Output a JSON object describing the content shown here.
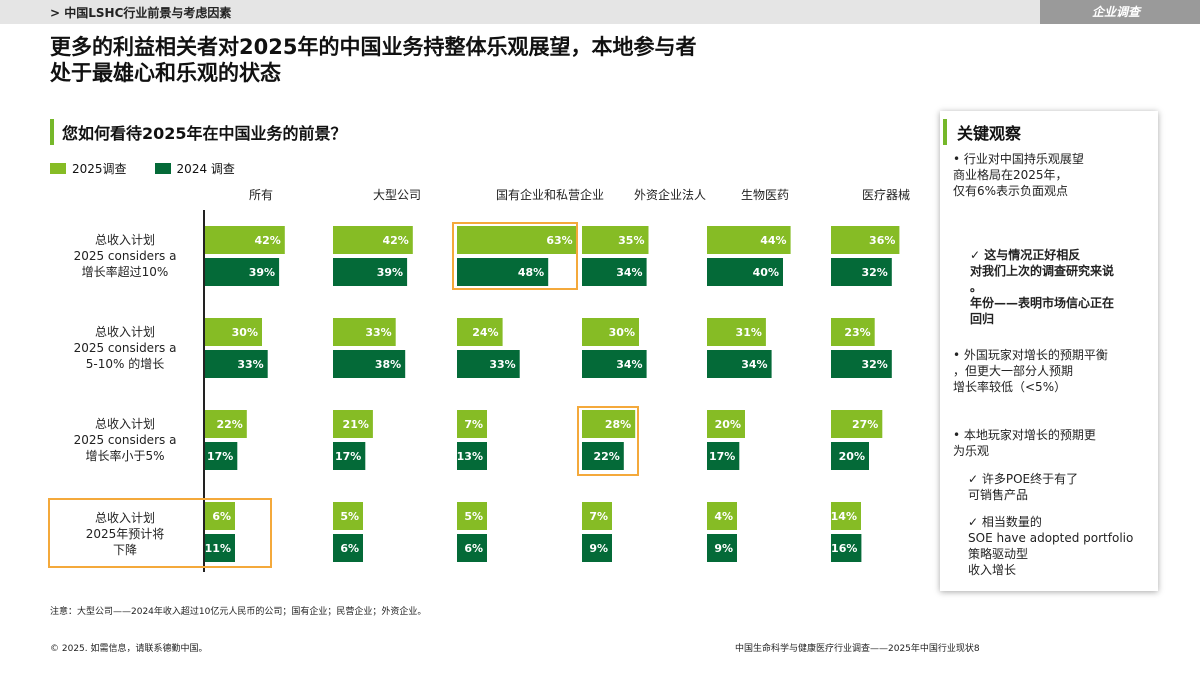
{
  "header": {
    "breadcrumb": "> 中国LSHC行业前景与考虑因素",
    "tag": "企业调查"
  },
  "headline": {
    "line1": "更多的利益相关者对2025年的中国业务持整体乐观展望，本地参与者",
    "line2": "处于最雄心和乐观的状态"
  },
  "question": "您如何看待2025年在中国业务的前景？",
  "colors": {
    "s2025": "#86bc25",
    "s2024": "#046a38",
    "highlight": "#f4a93b",
    "accent": "#76b82a"
  },
  "chart_data": {
    "type": "bar",
    "orientation": "horizontal",
    "legend": [
      "2025调查",
      "2024 调查"
    ],
    "column_headers": [
      "所有",
      "大型公司",
      "国有企业和私营企业",
      "外资企业法人",
      "生物医药",
      "医疗器械"
    ],
    "rows": [
      {
        "label_lines": [
          "总收入计划",
          "2025 considers a",
          "增长率超过10%"
        ],
        "s2025": [
          42,
          42,
          63,
          35,
          44,
          36
        ],
        "s2024": [
          39,
          39,
          48,
          34,
          40,
          32
        ]
      },
      {
        "label_lines": [
          "总收入计划",
          "2025 considers a",
          "5-10% 的增长"
        ],
        "s2025": [
          30,
          33,
          24,
          30,
          31,
          23
        ],
        "s2024": [
          33,
          38,
          33,
          34,
          34,
          32
        ]
      },
      {
        "label_lines": [
          "总收入计划",
          "2025 considers a",
          "增长率小于5%"
        ],
        "s2025": [
          22,
          21,
          7,
          28,
          20,
          27
        ],
        "s2024": [
          17,
          17,
          13,
          22,
          17,
          20
        ]
      },
      {
        "label_lines": [
          "总收入计划",
          "2025年预计将",
          "下降"
        ],
        "s2025": [
          6,
          5,
          5,
          7,
          4,
          14
        ],
        "s2024": [
          11,
          6,
          6,
          9,
          9,
          16
        ]
      }
    ]
  },
  "observations": {
    "title": "关键观察",
    "items": [
      "• 行业对中国持乐观展望",
      "商业格局在2025年，",
      "仅有6%表示负面观点",
      "✓ 这与情况正好相反",
      "对我们上次的调查研究来说",
      "。",
      "年份——表明市场信心正在",
      "回归",
      "• 外国玩家对增长的预期平衡",
      "，但更大一部分人预期",
      "增长率较低（<5%）",
      "• 本地玩家对增长的预期更",
      "为乐观",
      "✓ 许多POE终于有了",
      "可销售产品",
      "✓ 相当数量的",
      "SOE have adopted portfolio",
      "策略驱动型",
      "收入增长"
    ]
  },
  "note": "注意：大型公司——2024年收入超过10亿元人民币的公司；国有企业；民营企业；外资企业。",
  "copyright": "© 2025. 如需信息，请联系德勤中国。",
  "footer": "中国生命科学与健康医疗行业调查——2025年中国行业现状8"
}
